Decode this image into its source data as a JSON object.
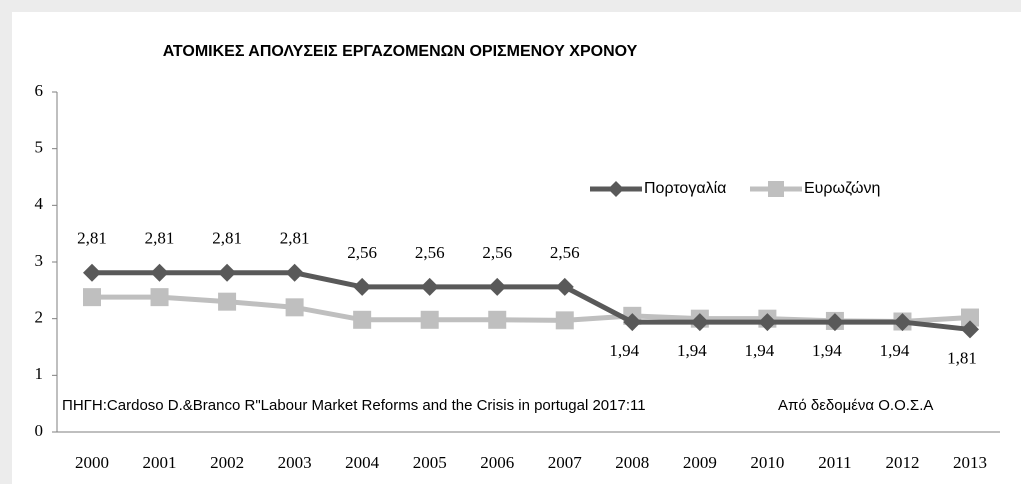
{
  "chart_data": {
    "type": "line",
    "title": "ΑΤΟΜΙΚΕΣ ΑΠΟΛΥΣΕΙΣ ΕΡΓΑΖΟΜΕΝΩΝ ΟΡΙΣΜΕΝΟΥ ΧΡΟΝΟΥ",
    "categories": [
      "2000",
      "2001",
      "2002",
      "2003",
      "2004",
      "2005",
      "2006",
      "2007",
      "2008",
      "2009",
      "2010",
      "2011",
      "2012",
      "2013"
    ],
    "series": [
      {
        "name": "Πορτογαλία",
        "color": "#595959",
        "marker": "diamond",
        "values": [
          2.81,
          2.81,
          2.81,
          2.81,
          2.56,
          2.56,
          2.56,
          2.56,
          1.94,
          1.94,
          1.94,
          1.94,
          1.94,
          1.81
        ],
        "value_labels": [
          "2,81",
          "2,81",
          "2,81",
          "2,81",
          "2,56",
          "2,56",
          "2,56",
          "2,56",
          "1,94",
          "1,94",
          "1,94",
          "1,94",
          "1,94",
          "1,81"
        ]
      },
      {
        "name": "Ευρωζώνη",
        "color": "#bfbfbf",
        "marker": "square",
        "values": [
          2.38,
          2.38,
          2.3,
          2.2,
          1.98,
          1.98,
          1.98,
          1.97,
          2.05,
          2.0,
          2.0,
          1.96,
          1.95,
          2.02
        ]
      }
    ],
    "ylim": [
      0,
      6
    ],
    "yticks": [
      0,
      1,
      2,
      3,
      4,
      5,
      6
    ],
    "grid": false,
    "annotations": [
      "ΠΗΓΗ:Cardoso D.&Branco R\"Labour Market Reforms and the Crisis in portugal 2017:11",
      "Από δεδομένα Ο.Ο.Σ.Α"
    ]
  }
}
